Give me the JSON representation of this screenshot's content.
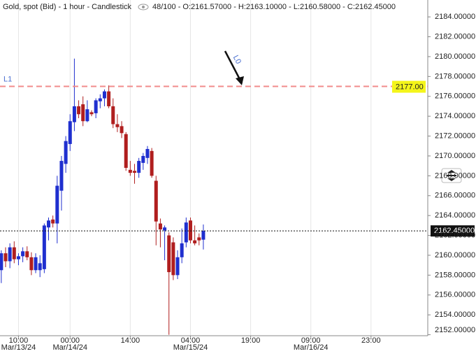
{
  "header": {
    "title": "Gold, spot (Bid) - 1 hour - Candlestick",
    "info": "48/100 - O:2161.57000 - H:2163.10000 - L:2160.58000 - C:2162.45000"
  },
  "chart_data": {
    "type": "candlestick",
    "up_color": "#1f2fcf",
    "down_color": "#b01e1e",
    "open": [
      2158.5,
      2160.2,
      2159.4,
      2160.8,
      2159.6,
      2159.9,
      2160.4,
      2159.8,
      2158.5,
      2158.5,
      2158.6,
      2162.8,
      2163.6,
      2163.2,
      2166.5,
      2169.2,
      2171.2,
      2173.4,
      2175.0,
      2175.2,
      2173.5,
      2174.4,
      2174.3,
      2175.5,
      2175.8,
      2176.5,
      2175.0,
      2173.2,
      2173.0,
      2172.2,
      2168.6,
      2168.5,
      2168.3,
      2169.3,
      2169.8,
      2170.5,
      2167.5,
      2163.2,
      2162.5,
      2162.0,
      2161.3,
      2158.0,
      2159.8,
      2161.3,
      2163.5,
      2161.5,
      2161.8,
      2161.57
    ],
    "high": [
      2160.5,
      2160.8,
      2161.2,
      2161.4,
      2160.2,
      2160.8,
      2160.9,
      2160.3,
      2160.2,
      2160.0,
      2163.2,
      2163.8,
      2164.0,
      2168.0,
      2170.0,
      2172.0,
      2174.2,
      2179.8,
      2175.6,
      2176.0,
      2175.6,
      2174.6,
      2175.8,
      2176.2,
      2176.7,
      2177.1,
      2175.8,
      2174.2,
      2173.5,
      2172.4,
      2169.5,
      2169.2,
      2169.8,
      2170.3,
      2171.0,
      2170.8,
      2168.0,
      2163.7,
      2163.0,
      2162.3,
      2161.8,
      2160.5,
      2162.7,
      2163.8,
      2163.8,
      2163.0,
      2162.2,
      2163.1
    ],
    "low": [
      2157.2,
      2158.8,
      2158.7,
      2159.2,
      2159.0,
      2159.3,
      2159.5,
      2158.0,
      2158.2,
      2157.8,
      2158.2,
      2161.5,
      2162.8,
      2161.2,
      2164.5,
      2168.3,
      2170.5,
      2172.5,
      2173.8,
      2173.0,
      2173.4,
      2174.0,
      2173.8,
      2174.8,
      2175.0,
      2174.8,
      2172.8,
      2172.4,
      2171.8,
      2168.5,
      2168.0,
      2167.2,
      2167.8,
      2168.6,
      2169.2,
      2167.8,
      2161.0,
      2160.8,
      2159.5,
      2152.0,
      2157.5,
      2157.6,
      2159.2,
      2160.8,
      2161.2,
      2161.0,
      2161.0,
      2160.58
    ],
    "close": [
      2160.2,
      2159.4,
      2160.8,
      2159.6,
      2159.9,
      2160.4,
      2159.8,
      2158.5,
      2159.8,
      2159.2,
      2163.0,
      2163.5,
      2163.2,
      2167.0,
      2169.5,
      2171.5,
      2173.5,
      2175.0,
      2174.2,
      2173.5,
      2174.7,
      2174.2,
      2175.6,
      2175.8,
      2176.5,
      2175.0,
      2173.2,
      2172.9,
      2172.3,
      2168.8,
      2168.3,
      2168.3,
      2169.5,
      2170.0,
      2170.7,
      2168.0,
      2163.4,
      2162.6,
      2162.8,
      2158.3,
      2158.0,
      2159.8,
      2161.2,
      2163.3,
      2161.5,
      2161.2,
      2161.5,
      2162.45
    ],
    "xlim": [
      -0.3,
      99.2
    ],
    "xticks": [
      {
        "value": 4,
        "label": "10:00",
        "date": "Mar/13/24"
      },
      {
        "value": 16,
        "label": "00:00",
        "date": "Mar/14/24"
      },
      {
        "value": 30,
        "label": "14:00"
      },
      {
        "value": 44,
        "label": "04:00",
        "date": "Mar/15/24"
      },
      {
        "value": 58,
        "label": "19:00"
      },
      {
        "value": 72,
        "label": "09:00",
        "date": "Mar/16/24"
      },
      {
        "value": 86,
        "label": "23:00"
      }
    ],
    "ylim": [
      2151.9,
      2185.7
    ],
    "yticks": [
      {
        "value": 2152,
        "label": "2152.00000"
      },
      {
        "value": 2154,
        "label": "2154.00000"
      },
      {
        "value": 2156,
        "label": "2156.00000"
      },
      {
        "value": 2158,
        "label": "2158.00000"
      },
      {
        "value": 2160,
        "label": "2160.00000"
      },
      {
        "value": 2162,
        "label": "2162.00000"
      },
      {
        "value": 2164,
        "label": "2164.00000"
      },
      {
        "value": 2166,
        "label": "2166.00000"
      },
      {
        "value": 2168,
        "label": "2168.00000"
      },
      {
        "value": 2170,
        "label": "2170.00000"
      },
      {
        "value": 2172,
        "label": "2172.00000"
      },
      {
        "value": 2174,
        "label": "2174.00000"
      },
      {
        "value": 2176,
        "label": "2176.00000"
      },
      {
        "value": 2178,
        "label": "2178.00000"
      },
      {
        "value": 2180,
        "label": "2180.00000"
      },
      {
        "value": 2182,
        "label": "2182.00000"
      },
      {
        "value": 2184,
        "label": "2184.00000"
      }
    ],
    "hline": {
      "name": "L1",
      "value": 2177,
      "label": "2177.00",
      "color": "#f28b8b"
    },
    "current_price": {
      "value": 2162.45,
      "label": "2162.45000"
    },
    "arrow_label": "L0"
  }
}
